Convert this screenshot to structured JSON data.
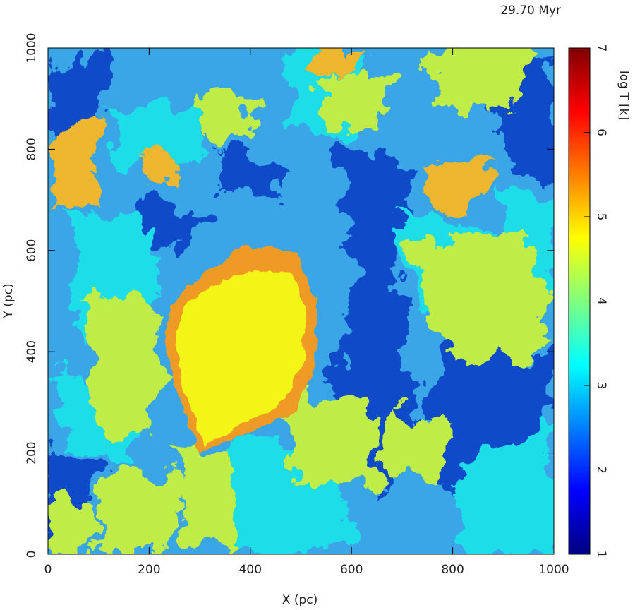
{
  "chart_data": {
    "type": "heatmap",
    "title": "29.70 Myr",
    "x_label": "X (pc)",
    "y_label": "Y (pc)",
    "colorbar_label": "log T [k]",
    "xlim": [
      0,
      1000
    ],
    "xticks": [
      0,
      200,
      400,
      600,
      800,
      1000
    ],
    "ylim": [
      0,
      1000
    ],
    "yticks": [
      0,
      200,
      400,
      600,
      800,
      1000
    ],
    "clim": [
      1,
      7
    ],
    "cticks": [
      1,
      2,
      3,
      4,
      5,
      6,
      7
    ]
  }
}
